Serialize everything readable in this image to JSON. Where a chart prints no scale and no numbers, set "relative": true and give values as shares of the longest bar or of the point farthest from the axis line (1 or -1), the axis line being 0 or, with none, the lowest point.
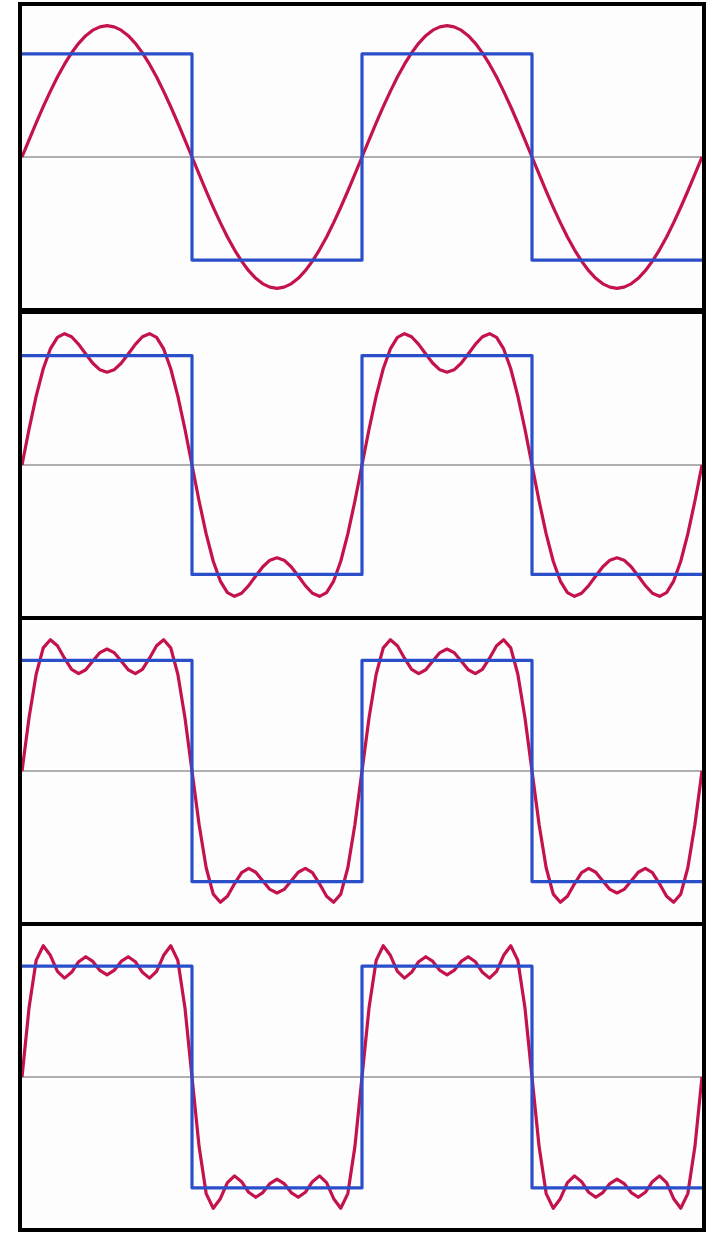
{
  "chart_data": [
    {
      "type": "line",
      "relative": true,
      "marker": "none",
      "categories": [
        null,
        null,
        null,
        null,
        null,
        null,
        null,
        null,
        null,
        null,
        null,
        null,
        null,
        null,
        null,
        null,
        null,
        null,
        null,
        null,
        null,
        null,
        null,
        null,
        null,
        null,
        null,
        null,
        null,
        null,
        null,
        null,
        null,
        null,
        null,
        null,
        null,
        null,
        null,
        null,
        null,
        null,
        null,
        null,
        null,
        null,
        null,
        null,
        null,
        null,
        null,
        null,
        null,
        null,
        null,
        null,
        null,
        null,
        null,
        null,
        null,
        null,
        null,
        null,
        null,
        null,
        null,
        null,
        null,
        null,
        null,
        null,
        null,
        null,
        null,
        null,
        null,
        null,
        null,
        null,
        null,
        null,
        null,
        null,
        null,
        null,
        null,
        null,
        null,
        null,
        null,
        null,
        null,
        null,
        null,
        null,
        null
      ],
      "series": [
        {
          "type": "step",
          "color": "#2a4fc8",
          "values": [
            0.785,
            0.785,
            0.785,
            0.785,
            0.785,
            0.785,
            0.785,
            0.785,
            0.785,
            0.785,
            0.785,
            0.785,
            0.785,
            0.785,
            0.785,
            0.785,
            0.785,
            0.785,
            0.785,
            0.785,
            0.785,
            0.785,
            0.785,
            0.785,
            -0.785,
            -0.785,
            -0.785,
            -0.785,
            -0.785,
            -0.785,
            -0.785,
            -0.785,
            -0.785,
            -0.785,
            -0.785,
            -0.785,
            -0.785,
            -0.785,
            -0.785,
            -0.785,
            -0.785,
            -0.785,
            -0.785,
            -0.785,
            -0.785,
            -0.785,
            -0.785,
            -0.785,
            0.785,
            0.785,
            0.785,
            0.785,
            0.785,
            0.785,
            0.785,
            0.785,
            0.785,
            0.785,
            0.785,
            0.785,
            0.785,
            0.785,
            0.785,
            0.785,
            0.785,
            0.785,
            0.785,
            0.785,
            0.785,
            0.785,
            0.785,
            0.785,
            -0.785,
            -0.785,
            -0.785,
            -0.785,
            -0.785,
            -0.785,
            -0.785,
            -0.785,
            -0.785,
            -0.785,
            -0.785,
            -0.785,
            -0.785,
            -0.785,
            -0.785,
            -0.785,
            -0.785,
            -0.785,
            -0.785,
            -0.785,
            -0.785,
            -0.785,
            -0.785,
            -0.785,
            -0.785
          ]
        },
        {
          "type": "line",
          "color": "#c4124a",
          "values": [
            0,
            0.131,
            0.259,
            0.383,
            0.5,
            0.609,
            0.707,
            0.793,
            0.866,
            0.924,
            0.966,
            0.991,
            1,
            0.991,
            0.966,
            0.924,
            0.866,
            0.793,
            0.707,
            0.609,
            0.5,
            0.383,
            0.259,
            0.131,
            0,
            -0.131,
            -0.259,
            -0.383,
            -0.5,
            -0.609,
            -0.707,
            -0.793,
            -0.866,
            -0.924,
            -0.966,
            -0.991,
            -1,
            -0.991,
            -0.966,
            -0.924,
            -0.866,
            -0.793,
            -0.707,
            -0.609,
            -0.5,
            -0.383,
            -0.259,
            -0.131,
            0,
            0.131,
            0.259,
            0.383,
            0.5,
            0.609,
            0.707,
            0.793,
            0.866,
            0.924,
            0.966,
            0.991,
            1,
            0.991,
            0.966,
            0.924,
            0.866,
            0.793,
            0.707,
            0.609,
            0.5,
            0.383,
            0.259,
            0.131,
            0,
            -0.131,
            -0.259,
            -0.383,
            -0.5,
            -0.609,
            -0.707,
            -0.793,
            -0.866,
            -0.924,
            -0.966,
            -0.991,
            -1,
            -0.991,
            -0.966,
            -0.924,
            -0.866,
            -0.793,
            -0.707,
            -0.609,
            -0.5,
            -0.383,
            -0.259,
            -0.131,
            0
          ]
        }
      ]
    },
    {
      "type": "line",
      "relative": true,
      "marker": "none",
      "categories": [
        null,
        null,
        null,
        null,
        null,
        null,
        null,
        null,
        null,
        null,
        null,
        null,
        null,
        null,
        null,
        null,
        null,
        null,
        null,
        null,
        null,
        null,
        null,
        null,
        null,
        null,
        null,
        null,
        null,
        null,
        null,
        null,
        null,
        null,
        null,
        null,
        null,
        null,
        null,
        null,
        null,
        null,
        null,
        null,
        null,
        null,
        null,
        null,
        null,
        null,
        null,
        null,
        null,
        null,
        null,
        null,
        null,
        null,
        null,
        null,
        null,
        null,
        null,
        null,
        null,
        null,
        null,
        null,
        null,
        null,
        null,
        null,
        null,
        null,
        null,
        null,
        null,
        null,
        null,
        null,
        null,
        null,
        null,
        null,
        null,
        null,
        null,
        null,
        null,
        null,
        null,
        null,
        null,
        null,
        null,
        null,
        null
      ],
      "series": [
        {
          "type": "step",
          "color": "#2a4fc8",
          "values": [
            0.833,
            0.833,
            0.833,
            0.833,
            0.833,
            0.833,
            0.833,
            0.833,
            0.833,
            0.833,
            0.833,
            0.833,
            0.833,
            0.833,
            0.833,
            0.833,
            0.833,
            0.833,
            0.833,
            0.833,
            0.833,
            0.833,
            0.833,
            0.833,
            -0.833,
            -0.833,
            -0.833,
            -0.833,
            -0.833,
            -0.833,
            -0.833,
            -0.833,
            -0.833,
            -0.833,
            -0.833,
            -0.833,
            -0.833,
            -0.833,
            -0.833,
            -0.833,
            -0.833,
            -0.833,
            -0.833,
            -0.833,
            -0.833,
            -0.833,
            -0.833,
            -0.833,
            0.833,
            0.833,
            0.833,
            0.833,
            0.833,
            0.833,
            0.833,
            0.833,
            0.833,
            0.833,
            0.833,
            0.833,
            0.833,
            0.833,
            0.833,
            0.833,
            0.833,
            0.833,
            0.833,
            0.833,
            0.833,
            0.833,
            0.833,
            0.833,
            -0.833,
            -0.833,
            -0.833,
            -0.833,
            -0.833,
            -0.833,
            -0.833,
            -0.833,
            -0.833,
            -0.833,
            -0.833,
            -0.833,
            -0.833,
            -0.833,
            -0.833,
            -0.833,
            -0.833,
            -0.833,
            -0.833,
            -0.833,
            -0.833,
            -0.833,
            -0.833,
            -0.833,
            -0.833
          ]
        },
        {
          "type": "line",
          "color": "#c4124a",
          "values": [
            0,
            0.274,
            0.525,
            0.733,
            0.884,
            0.972,
            1,
            0.977,
            0.919,
            0.845,
            0.775,
            0.725,
            0.707,
            0.725,
            0.775,
            0.845,
            0.919,
            0.977,
            1,
            0.972,
            0.884,
            0.733,
            0.525,
            0.274,
            0,
            -0.274,
            -0.525,
            -0.733,
            -0.884,
            -0.972,
            -1,
            -0.977,
            -0.919,
            -0.845,
            -0.775,
            -0.725,
            -0.707,
            -0.725,
            -0.775,
            -0.845,
            -0.919,
            -0.977,
            -1,
            -0.972,
            -0.884,
            -0.733,
            -0.525,
            -0.274,
            0,
            0.274,
            0.525,
            0.733,
            0.884,
            0.972,
            1,
            0.977,
            0.919,
            0.845,
            0.775,
            0.725,
            0.707,
            0.725,
            0.775,
            0.845,
            0.919,
            0.977,
            1,
            0.972,
            0.884,
            0.733,
            0.525,
            0.274,
            0,
            -0.274,
            -0.525,
            -0.733,
            -0.884,
            -0.972,
            -1,
            -0.977,
            -0.919,
            -0.845,
            -0.775,
            -0.725,
            -0.707,
            -0.725,
            -0.775,
            -0.845,
            -0.919,
            -0.977,
            -1,
            -0.972,
            -0.884,
            -0.733,
            -0.525,
            -0.274,
            0
          ]
        }
      ]
    },
    {
      "type": "line",
      "relative": true,
      "marker": "none",
      "categories": [
        null,
        null,
        null,
        null,
        null,
        null,
        null,
        null,
        null,
        null,
        null,
        null,
        null,
        null,
        null,
        null,
        null,
        null,
        null,
        null,
        null,
        null,
        null,
        null,
        null,
        null,
        null,
        null,
        null,
        null,
        null,
        null,
        null,
        null,
        null,
        null,
        null,
        null,
        null,
        null,
        null,
        null,
        null,
        null,
        null,
        null,
        null,
        null,
        null,
        null,
        null,
        null,
        null,
        null,
        null,
        null,
        null,
        null,
        null,
        null,
        null,
        null,
        null,
        null,
        null,
        null,
        null,
        null,
        null,
        null,
        null,
        null,
        null,
        null,
        null,
        null,
        null,
        null,
        null,
        null,
        null,
        null,
        null,
        null,
        null,
        null,
        null,
        null,
        null,
        null,
        null,
        null,
        null,
        null,
        null,
        null,
        null
      ],
      "series": [
        {
          "type": "step",
          "color": "#2a4fc8",
          "values": [
            0.842,
            0.842,
            0.842,
            0.842,
            0.842,
            0.842,
            0.842,
            0.842,
            0.842,
            0.842,
            0.842,
            0.842,
            0.842,
            0.842,
            0.842,
            0.842,
            0.842,
            0.842,
            0.842,
            0.842,
            0.842,
            0.842,
            0.842,
            0.842,
            -0.842,
            -0.842,
            -0.842,
            -0.842,
            -0.842,
            -0.842,
            -0.842,
            -0.842,
            -0.842,
            -0.842,
            -0.842,
            -0.842,
            -0.842,
            -0.842,
            -0.842,
            -0.842,
            -0.842,
            -0.842,
            -0.842,
            -0.842,
            -0.842,
            -0.842,
            -0.842,
            -0.842,
            0.842,
            0.842,
            0.842,
            0.842,
            0.842,
            0.842,
            0.842,
            0.842,
            0.842,
            0.842,
            0.842,
            0.842,
            0.842,
            0.842,
            0.842,
            0.842,
            0.842,
            0.842,
            0.842,
            0.842,
            0.842,
            0.842,
            0.842,
            0.842,
            -0.842,
            -0.842,
            -0.842,
            -0.842,
            -0.842,
            -0.842,
            -0.842,
            -0.842,
            -0.842,
            -0.842,
            -0.842,
            -0.842,
            -0.842,
            -0.842,
            -0.842,
            -0.842,
            -0.842,
            -0.842,
            -0.842,
            -0.842,
            -0.842,
            -0.842,
            -0.842,
            -0.842,
            -0.842
          ]
        },
        {
          "type": "line",
          "color": "#c4124a",
          "values": [
            0,
            0.407,
            0.737,
            0.938,
            1,
            0.954,
            0.859,
            0.774,
            0.742,
            0.771,
            0.838,
            0.902,
            0.929,
            0.902,
            0.838,
            0.771,
            0.742,
            0.774,
            0.859,
            0.954,
            1,
            0.938,
            0.737,
            0.407,
            0,
            -0.407,
            -0.737,
            -0.938,
            -1,
            -0.954,
            -0.859,
            -0.774,
            -0.742,
            -0.771,
            -0.838,
            -0.902,
            -0.929,
            -0.902,
            -0.838,
            -0.771,
            -0.742,
            -0.774,
            -0.859,
            -0.954,
            -1,
            -0.938,
            -0.737,
            -0.407,
            0,
            0.407,
            0.737,
            0.938,
            1,
            0.954,
            0.859,
            0.774,
            0.742,
            0.771,
            0.838,
            0.902,
            0.929,
            0.902,
            0.838,
            0.771,
            0.742,
            0.774,
            0.859,
            0.954,
            1,
            0.938,
            0.737,
            0.407,
            0,
            -0.407,
            -0.737,
            -0.938,
            -1,
            -0.954,
            -0.859,
            -0.774,
            -0.742,
            -0.771,
            -0.838,
            -0.902,
            -0.929,
            -0.902,
            -0.838,
            -0.771,
            -0.742,
            -0.774,
            -0.859,
            -0.954,
            -1,
            -0.938,
            -0.737,
            -0.407,
            0
          ]
        }
      ]
    },
    {
      "type": "line",
      "relative": true,
      "marker": "none",
      "categories": [
        null,
        null,
        null,
        null,
        null,
        null,
        null,
        null,
        null,
        null,
        null,
        null,
        null,
        null,
        null,
        null,
        null,
        null,
        null,
        null,
        null,
        null,
        null,
        null,
        null,
        null,
        null,
        null,
        null,
        null,
        null,
        null,
        null,
        null,
        null,
        null,
        null,
        null,
        null,
        null,
        null,
        null,
        null,
        null,
        null,
        null,
        null,
        null,
        null,
        null,
        null,
        null,
        null,
        null,
        null,
        null,
        null,
        null,
        null,
        null,
        null,
        null,
        null,
        null,
        null,
        null,
        null,
        null,
        null,
        null,
        null,
        null,
        null,
        null,
        null,
        null,
        null,
        null,
        null,
        null,
        null,
        null,
        null,
        null,
        null,
        null,
        null,
        null,
        null,
        null,
        null,
        null,
        null,
        null,
        null,
        null,
        null
      ],
      "series": [
        {
          "type": "step",
          "color": "#2a4fc8",
          "values": [
            0.844,
            0.844,
            0.844,
            0.844,
            0.844,
            0.844,
            0.844,
            0.844,
            0.844,
            0.844,
            0.844,
            0.844,
            0.844,
            0.844,
            0.844,
            0.844,
            0.844,
            0.844,
            0.844,
            0.844,
            0.844,
            0.844,
            0.844,
            0.844,
            -0.844,
            -0.844,
            -0.844,
            -0.844,
            -0.844,
            -0.844,
            -0.844,
            -0.844,
            -0.844,
            -0.844,
            -0.844,
            -0.844,
            -0.844,
            -0.844,
            -0.844,
            -0.844,
            -0.844,
            -0.844,
            -0.844,
            -0.844,
            -0.844,
            -0.844,
            -0.844,
            -0.844,
            0.844,
            0.844,
            0.844,
            0.844,
            0.844,
            0.844,
            0.844,
            0.844,
            0.844,
            0.844,
            0.844,
            0.844,
            0.844,
            0.844,
            0.844,
            0.844,
            0.844,
            0.844,
            0.844,
            0.844,
            0.844,
            0.844,
            0.844,
            0.844,
            -0.844,
            -0.844,
            -0.844,
            -0.844,
            -0.844,
            -0.844,
            -0.844,
            -0.844,
            -0.844,
            -0.844,
            -0.844,
            -0.844,
            -0.844,
            -0.844,
            -0.844,
            -0.844,
            -0.844,
            -0.844,
            -0.844,
            -0.844,
            -0.844,
            -0.844,
            -0.844,
            -0.844,
            -0.844
          ]
        },
        {
          "type": "line",
          "color": "#c4124a",
          "values": [
            0,
            0.53,
            0.888,
            1,
            0.927,
            0.805,
            0.753,
            0.797,
            0.878,
            0.916,
            0.88,
            0.812,
            0.778,
            0.812,
            0.88,
            0.916,
            0.878,
            0.797,
            0.753,
            0.805,
            0.927,
            1,
            0.888,
            0.53,
            0,
            -0.53,
            -0.888,
            -1,
            -0.927,
            -0.805,
            -0.753,
            -0.797,
            -0.878,
            -0.916,
            -0.88,
            -0.812,
            -0.778,
            -0.812,
            -0.88,
            -0.916,
            -0.878,
            -0.797,
            -0.753,
            -0.805,
            -0.927,
            -1,
            -0.888,
            -0.53,
            0,
            0.53,
            0.888,
            1,
            0.927,
            0.805,
            0.753,
            0.797,
            0.878,
            0.916,
            0.88,
            0.812,
            0.778,
            0.812,
            0.88,
            0.916,
            0.878,
            0.797,
            0.753,
            0.805,
            0.927,
            1,
            0.888,
            0.53,
            0,
            -0.53,
            -0.888,
            -1,
            -0.927,
            -0.805,
            -0.753,
            -0.797,
            -0.878,
            -0.916,
            -0.88,
            -0.812,
            -0.778,
            -0.812,
            -0.88,
            -0.916,
            -0.878,
            -0.797,
            -0.753,
            -0.805,
            -0.927,
            -1,
            -0.888,
            -0.53,
            0
          ]
        }
      ]
    }
  ]
}
